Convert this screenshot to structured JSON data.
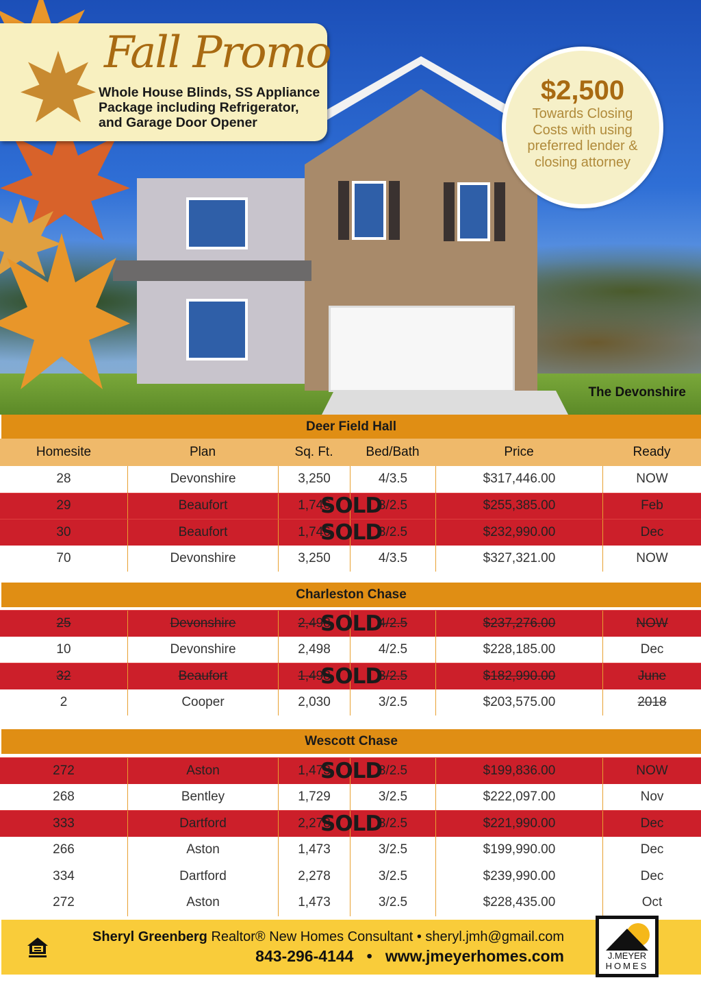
{
  "promo": {
    "title": "Fall Promo",
    "subtitle": "Whole House Blinds, SS Appliance Package including Refrigerator, and Garage Door Opener"
  },
  "badge": {
    "amount": "$2,500",
    "text": "Towards Closing Costs with using preferred lender & closing attorney"
  },
  "photo_caption": "The Devonshire",
  "columns": [
    "Homesite",
    "Plan",
    "Sq. Ft.",
    "Bed/Bath",
    "Price",
    "Ready"
  ],
  "sold_label": "SOLD",
  "colors": {
    "section": "#e08e14",
    "header": "#efb96a",
    "sold": "#cc1f2a",
    "footer": "#f9cc3a"
  },
  "sections": [
    {
      "name": "Deer Field Hall",
      "rows": [
        {
          "homesite": "28",
          "plan": "Devonshire",
          "sqft": "3,250",
          "bedbath": "4/3.5",
          "price": "$317,446.00",
          "ready": "NOW",
          "sold": false
        },
        {
          "homesite": "29",
          "plan": "Beaufort",
          "sqft": "1,746",
          "bedbath": "3/2.5",
          "price": "$255,385.00",
          "ready": "Feb",
          "sold": true
        },
        {
          "homesite": "30",
          "plan": "Beaufort",
          "sqft": "1,746",
          "bedbath": "3/2.5",
          "price": "$232,990.00",
          "ready": "Dec",
          "sold": true
        },
        {
          "homesite": "70",
          "plan": "Devonshire",
          "sqft": "3,250",
          "bedbath": "4/3.5",
          "price": "$327,321.00",
          "ready": "NOW",
          "sold": false
        }
      ]
    },
    {
      "name": "Charleston Chase",
      "rows": [
        {
          "homesite": "25",
          "plan": "Devonshire",
          "sqft": "2,498",
          "bedbath": "4/2.5",
          "price": "$237,276.00",
          "ready": "NOW",
          "sold": true,
          "struck": true
        },
        {
          "homesite": "10",
          "plan": "Devonshire",
          "sqft": "2,498",
          "bedbath": "4/2.5",
          "price": "$228,185.00",
          "ready": "Dec",
          "sold": false
        },
        {
          "homesite": "32",
          "plan": "Beaufort",
          "sqft": "1,498",
          "bedbath": "3/2.5",
          "price": "$182,990.00",
          "ready": "June",
          "sold": true,
          "struck": true
        },
        {
          "homesite": "2",
          "plan": "Cooper",
          "sqft": "2,030",
          "bedbath": "3/2.5",
          "price": "$203,575.00",
          "ready": "2018",
          "sold": false,
          "ready_struck": true
        }
      ]
    },
    {
      "name": "Wescott Chase",
      "rows": [
        {
          "homesite": "272",
          "plan": "Aston",
          "sqft": "1,473",
          "bedbath": "3/2.5",
          "price": "$199,836.00",
          "ready": "NOW",
          "sold": true
        },
        {
          "homesite": "268",
          "plan": "Bentley",
          "sqft": "1,729",
          "bedbath": "3/2.5",
          "price": "$222,097.00",
          "ready": "Nov",
          "sold": false
        },
        {
          "homesite": "333",
          "plan": "Dartford",
          "sqft": "2,278",
          "bedbath": "3/2.5",
          "price": "$221,990.00",
          "ready": "Dec",
          "sold": true
        },
        {
          "homesite": "266",
          "plan": "Aston",
          "sqft": "1,473",
          "bedbath": "3/2.5",
          "price": "$199,990.00",
          "ready": "Dec",
          "sold": false
        },
        {
          "homesite": "334",
          "plan": "Dartford",
          "sqft": "2,278",
          "bedbath": "3/2.5",
          "price": "$239,990.00",
          "ready": "Dec",
          "sold": false
        },
        {
          "homesite": "272",
          "plan": "Aston",
          "sqft": "1,473",
          "bedbath": "3/2.5",
          "price": "$228,435.00",
          "ready": "Oct",
          "sold": false
        }
      ]
    }
  ],
  "footer": {
    "name": "Sheryl Greenberg",
    "role": "Realtor® New Homes Consultant •",
    "email": "sheryl.jmh@gmail.com",
    "phone": "843-296-4144",
    "sep": "•",
    "website": "www.jmeyerhomes.com"
  },
  "logo": {
    "line1": "J.MEYER",
    "line2": "HOMES"
  }
}
